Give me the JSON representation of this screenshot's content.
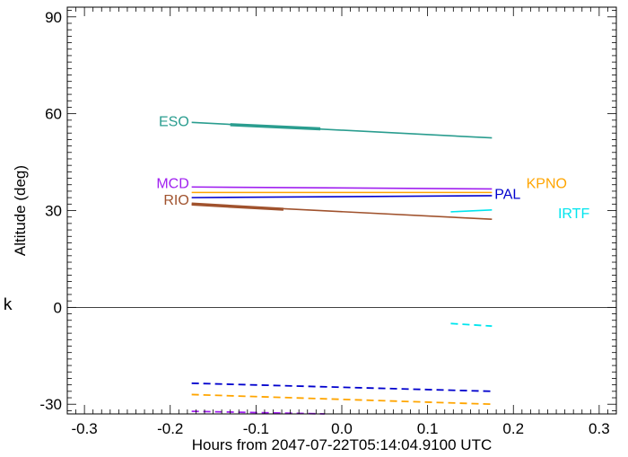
{
  "chart_data": {
    "type": "line",
    "title": "",
    "xlabel": "Hours from 2047-07-22T05:14:04.9100 UTC",
    "ylabel": "Altitude (deg)",
    "xlim": [
      -0.32,
      0.32
    ],
    "ylim": [
      -33,
      93
    ],
    "x_ticks": [
      -0.3,
      -0.2,
      -0.1,
      0.0,
      0.1,
      0.2,
      0.3
    ],
    "x_tick_labels": [
      "-0.3",
      "-0.2",
      "-0.1",
      "0.0",
      "0.1",
      "0.2",
      "0.3"
    ],
    "y_ticks": [
      -30,
      0,
      30,
      60,
      90
    ],
    "y_tick_labels": [
      "-30",
      "0",
      "30",
      "60",
      "90"
    ],
    "zero_line": 0,
    "side_text": "k",
    "series": [
      {
        "name": "ESO",
        "color": "#2a9d8f",
        "solid": [
          [
            -0.175,
            57.3
          ],
          [
            0.175,
            52.5
          ]
        ],
        "bold": [
          [
            -0.13,
            56.6
          ],
          [
            -0.025,
            55.3
          ]
        ],
        "dashed": [],
        "label_pos": [
          -0.178,
          57.5
        ],
        "label_anchor": "end"
      },
      {
        "name": "MCD",
        "color": "#a020f0",
        "solid": [
          [
            -0.175,
            37.3
          ],
          [
            0.175,
            36.7
          ]
        ],
        "bold": [],
        "dashed": [
          [
            -0.175,
            -32.2
          ],
          [
            -0.02,
            -33.0
          ]
        ],
        "label_pos": [
          -0.178,
          38.4
        ],
        "label_anchor": "end"
      },
      {
        "name": "KPNO",
        "color": "#ffa500",
        "solid": [
          [
            -0.175,
            35.6
          ],
          [
            0.175,
            35.6
          ]
        ],
        "bold": [],
        "dashed": [
          [
            -0.175,
            -27.0
          ],
          [
            0.175,
            -30.0
          ]
        ],
        "label_pos": [
          0.215,
          38.3
        ],
        "label_anchor": "start"
      },
      {
        "name": "PAL",
        "color": "#0000cd",
        "solid": [
          [
            -0.175,
            34.0
          ],
          [
            0.175,
            34.6
          ]
        ],
        "bold": [],
        "dashed": [
          [
            -0.175,
            -23.5
          ],
          [
            0.175,
            -26.0
          ]
        ],
        "label_pos": [
          0.178,
          35.0
        ],
        "label_anchor": "start"
      },
      {
        "name": "RIO",
        "color": "#a0522d",
        "solid": [
          [
            -0.175,
            32.0
          ],
          [
            0.175,
            27.3
          ]
        ],
        "bold": [
          [
            -0.175,
            32.0
          ],
          [
            -0.068,
            30.4
          ]
        ],
        "dashed": [],
        "label_pos": [
          -0.178,
          33.2
        ],
        "label_anchor": "end"
      },
      {
        "name": "IRTF",
        "color": "#00e5ee",
        "solid": [
          [
            0.127,
            29.6
          ],
          [
            0.175,
            30.2
          ]
        ],
        "bold": [],
        "dashed": [
          [
            0.127,
            -5.0
          ],
          [
            0.175,
            -5.8
          ]
        ],
        "label_pos": [
          0.252,
          29.0
        ],
        "label_anchor": "start"
      }
    ]
  }
}
